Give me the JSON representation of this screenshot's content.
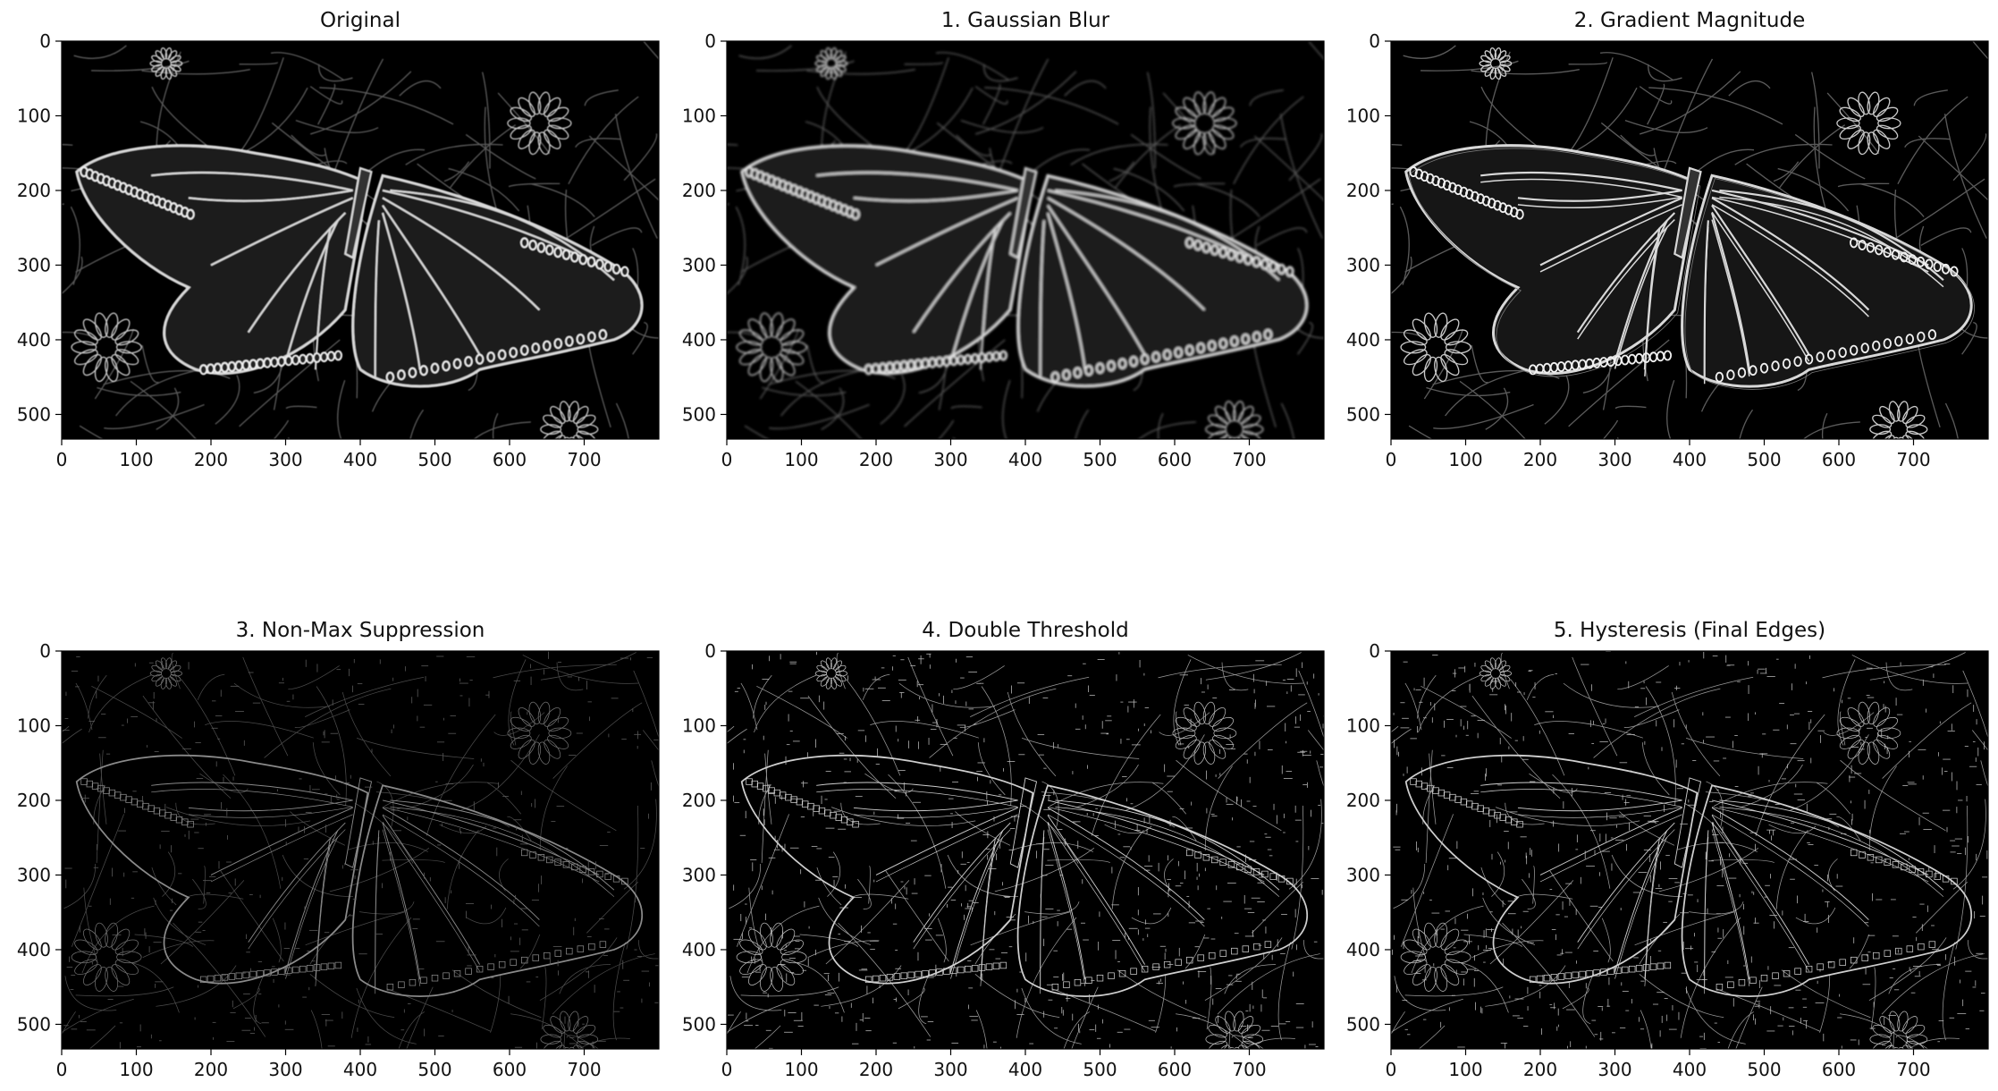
{
  "chart_data": [
    {
      "type": "image",
      "title": "Original",
      "xticks": [
        0,
        100,
        200,
        300,
        400,
        500,
        600,
        700
      ],
      "yticks": [
        0,
        100,
        200,
        300,
        400,
        500
      ],
      "xlim": [
        0,
        800
      ],
      "ylim": [
        533,
        0
      ],
      "colormap": "gray",
      "style": "soft"
    },
    {
      "type": "image",
      "title": "1. Gaussian Blur",
      "xticks": [
        0,
        100,
        200,
        300,
        400,
        500,
        600,
        700
      ],
      "yticks": [
        0,
        100,
        200,
        300,
        400,
        500
      ],
      "xlim": [
        0,
        800
      ],
      "ylim": [
        533,
        0
      ],
      "colormap": "gray",
      "style": "blur"
    },
    {
      "type": "image",
      "title": "2. Gradient Magnitude",
      "xticks": [
        0,
        100,
        200,
        300,
        400,
        500,
        600,
        700
      ],
      "yticks": [
        0,
        100,
        200,
        300,
        400,
        500
      ],
      "xlim": [
        0,
        800
      ],
      "ylim": [
        533,
        0
      ],
      "colormap": "gray",
      "style": "gradient"
    },
    {
      "type": "image",
      "title": "3. Non-Max Suppression",
      "xticks": [
        0,
        100,
        200,
        300,
        400,
        500,
        600,
        700
      ],
      "yticks": [
        0,
        100,
        200,
        300,
        400,
        500
      ],
      "xlim": [
        0,
        800
      ],
      "ylim": [
        533,
        0
      ],
      "colormap": "gray",
      "style": "thin-dim"
    },
    {
      "type": "image",
      "title": "4. Double Threshold",
      "xticks": [
        0,
        100,
        200,
        300,
        400,
        500,
        600,
        700
      ],
      "yticks": [
        0,
        100,
        200,
        300,
        400,
        500
      ],
      "xlim": [
        0,
        800
      ],
      "ylim": [
        533,
        0
      ],
      "colormap": "gray",
      "style": "thin-bright"
    },
    {
      "type": "image",
      "title": "5. Hysteresis (Final Edges)",
      "xticks": [
        0,
        100,
        200,
        300,
        400,
        500,
        600,
        700
      ],
      "yticks": [
        0,
        100,
        200,
        300,
        400,
        500
      ],
      "xlim": [
        0,
        800
      ],
      "ylim": [
        533,
        0
      ],
      "colormap": "gray",
      "style": "thin-bright"
    }
  ]
}
